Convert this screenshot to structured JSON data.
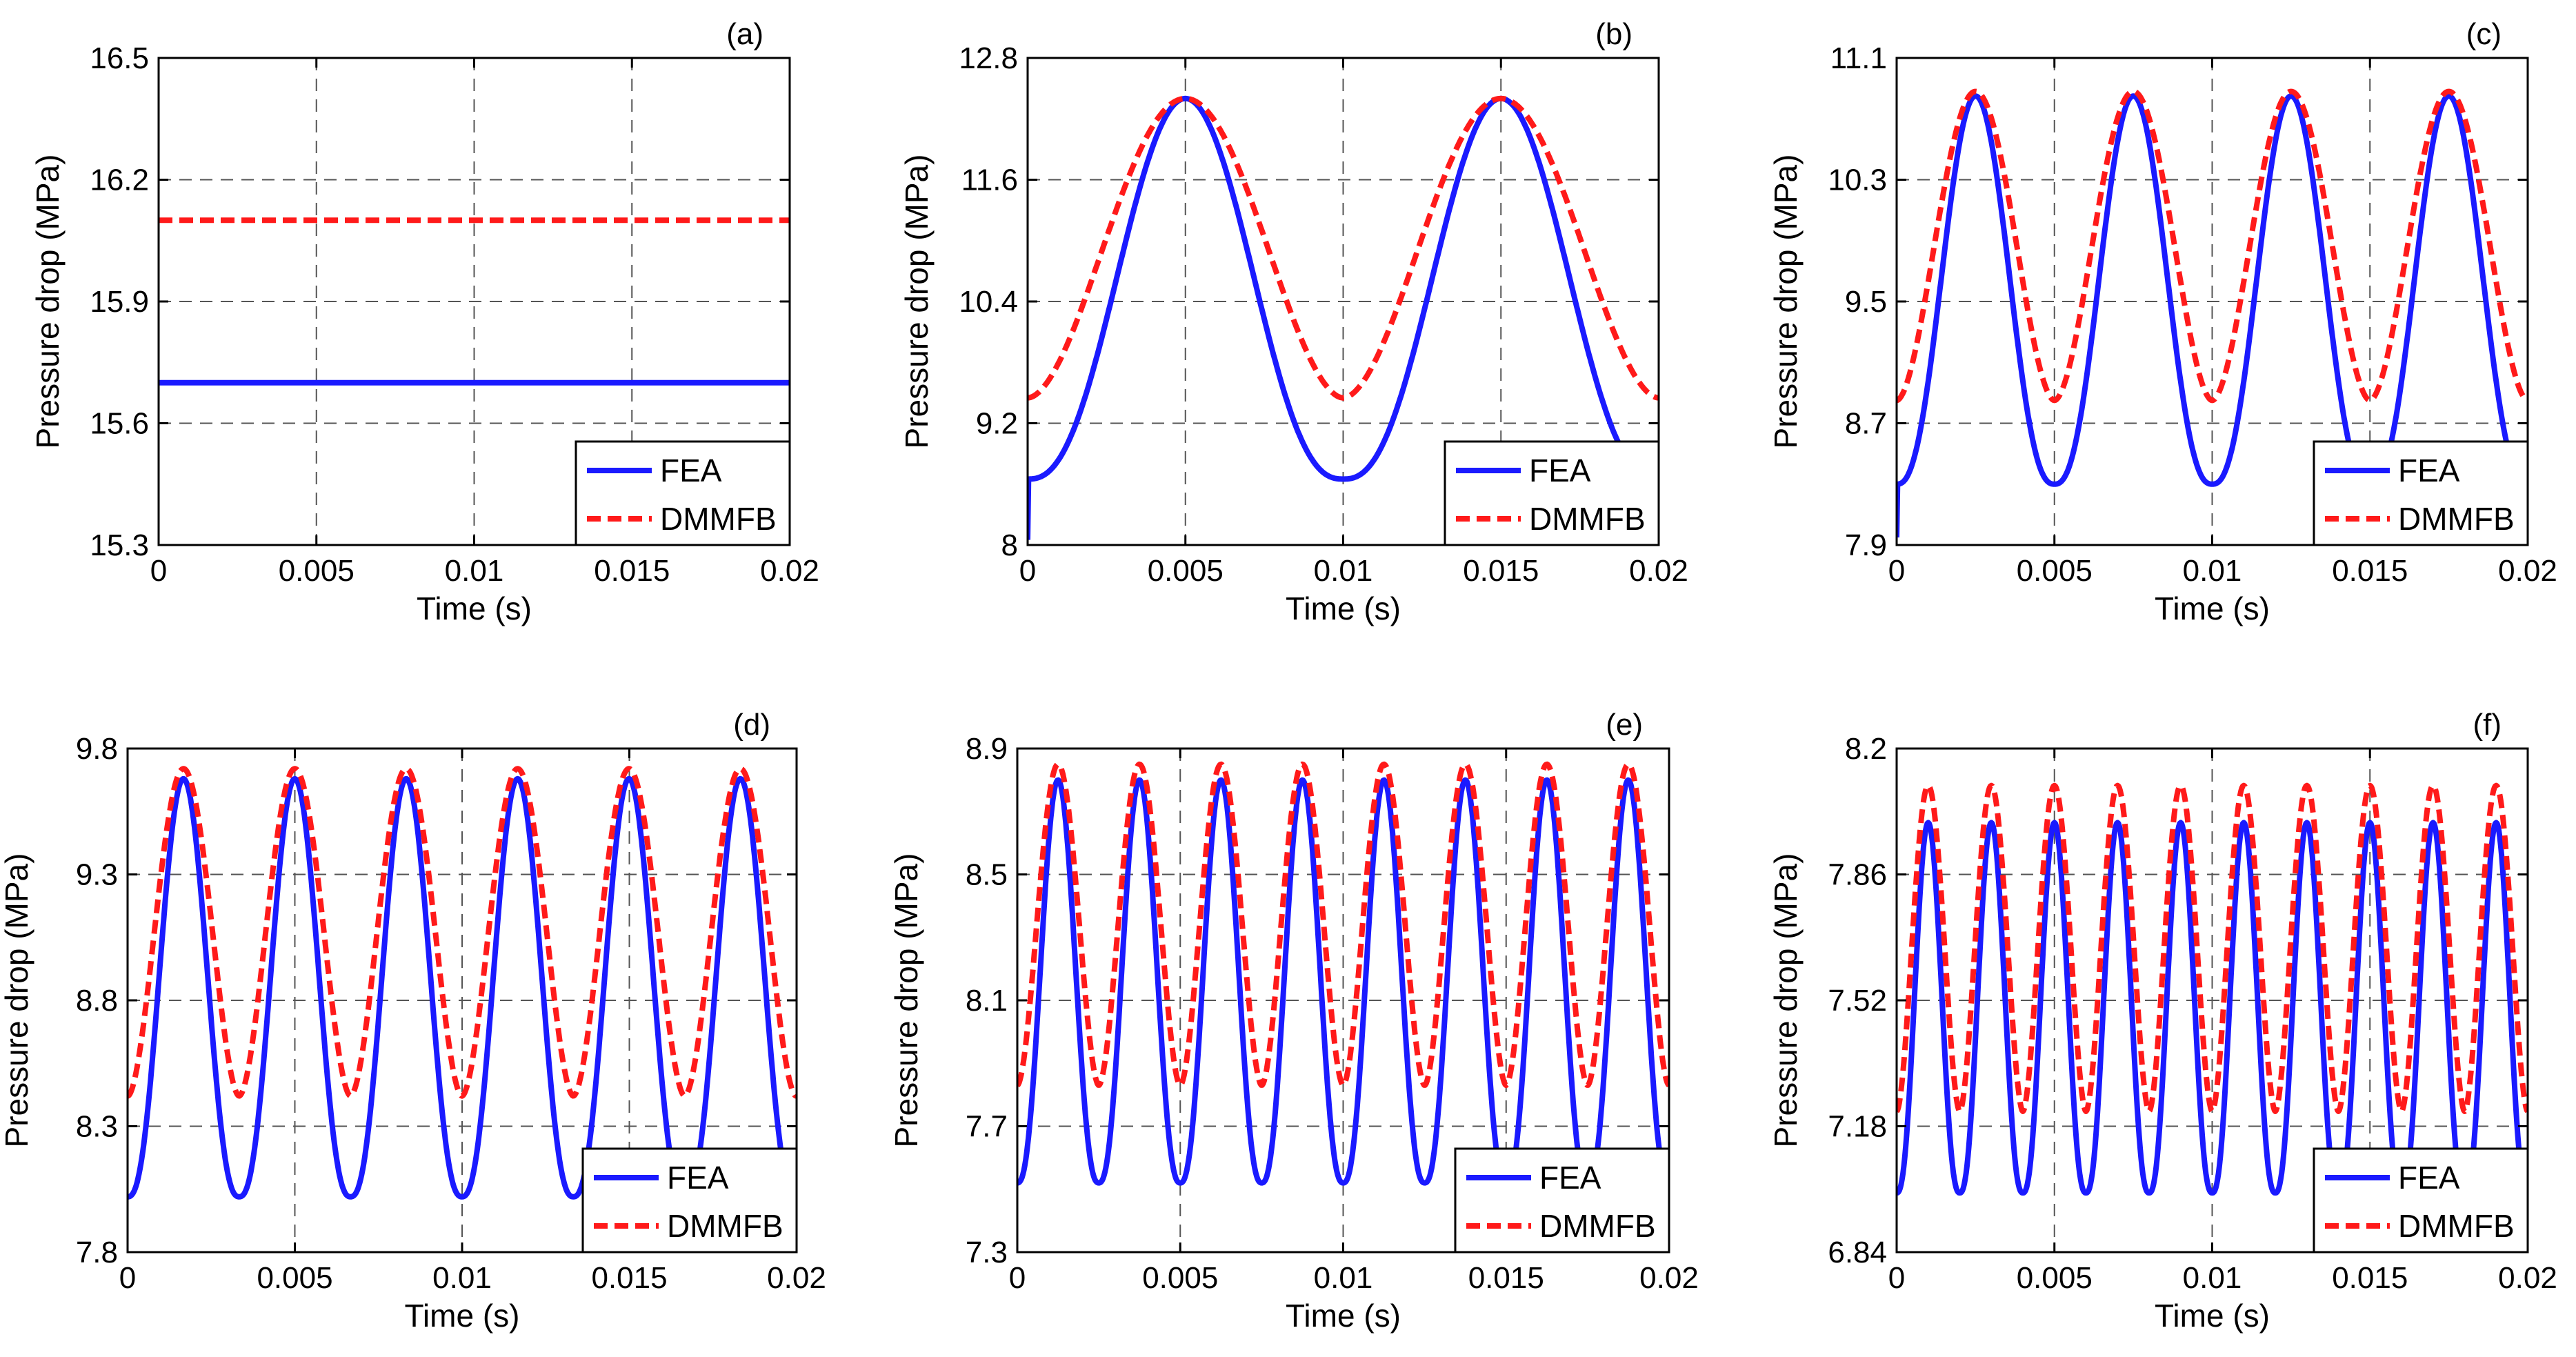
{
  "figure": {
    "ylabel": "Pressure drop (MPa)",
    "xlabel": "Time (s)"
  },
  "colors": {
    "fea": "#1a1aff",
    "dmmfb": "#ff1a1a",
    "grid": "#555555"
  },
  "chart_data": [
    {
      "panel": "(a)",
      "type": "line",
      "xlabel": "Time (s)",
      "ylabel": "Pressure drop (MPa)",
      "xlim": [
        0,
        0.02
      ],
      "ylim": [
        15.3,
        16.5
      ],
      "xticks": [
        "0",
        "0.005",
        "0.01",
        "0.015",
        "0.02"
      ],
      "yticks": [
        "15.3",
        "15.6",
        "15.9",
        "16.2",
        "16.5"
      ],
      "grid": true,
      "legend_position": "bottom-right",
      "series": [
        {
          "name": "FEA",
          "style": "solid",
          "kind": "constant",
          "value": 15.7
        },
        {
          "name": "DMMFB",
          "style": "dashed",
          "kind": "constant",
          "value": 16.1
        }
      ]
    },
    {
      "panel": "(b)",
      "type": "line",
      "xlabel": "Time (s)",
      "ylabel": "Pressure drop (MPa)",
      "xlim": [
        0,
        0.02
      ],
      "ylim": [
        8,
        12.8
      ],
      "xticks": [
        "0",
        "0.005",
        "0.01",
        "0.015",
        "0.02"
      ],
      "yticks": [
        "8",
        "9.2",
        "10.4",
        "11.6",
        "12.8"
      ],
      "grid": true,
      "legend_position": "bottom-right",
      "series": [
        {
          "name": "FEA",
          "style": "solid",
          "kind": "periodic",
          "period": 0.01,
          "peak_time": 0.005,
          "max": 12.4,
          "min": 8.65,
          "shape": 1.25,
          "start_value": 8.05
        },
        {
          "name": "DMMFB",
          "style": "dashed",
          "kind": "periodic",
          "period": 0.01,
          "peak_time": 0.005,
          "max": 12.4,
          "min": 9.45,
          "shape": 0.9
        }
      ]
    },
    {
      "panel": "(c)",
      "type": "line",
      "xlabel": "Time (s)",
      "ylabel": "Pressure drop (MPa)",
      "xlim": [
        0,
        0.02
      ],
      "ylim": [
        7.9,
        11.1
      ],
      "xticks": [
        "0",
        "0.005",
        "0.01",
        "0.015",
        "0.02"
      ],
      "yticks": [
        "7.9",
        "8.7",
        "9.5",
        "10.3",
        "11.1"
      ],
      "grid": true,
      "legend_position": "bottom-right",
      "series": [
        {
          "name": "FEA",
          "style": "solid",
          "kind": "periodic",
          "period": 0.005,
          "peak_time": 0.0025,
          "max": 10.85,
          "min": 8.3,
          "shape": 1.25,
          "start_value": 7.95
        },
        {
          "name": "DMMFB",
          "style": "dashed",
          "kind": "periodic",
          "period": 0.005,
          "peak_time": 0.0025,
          "max": 10.88,
          "min": 8.85,
          "shape": 0.9
        }
      ]
    },
    {
      "panel": "(d)",
      "type": "line",
      "xlabel": "Time (s)",
      "ylabel": "Pressure drop (MPa)",
      "xlim": [
        0,
        0.02
      ],
      "ylim": [
        7.8,
        9.8
      ],
      "xticks": [
        "0",
        "0.005",
        "0.01",
        "0.015",
        "0.02"
      ],
      "yticks": [
        "7.8",
        "8.3",
        "8.8",
        "9.3",
        "9.8"
      ],
      "grid": true,
      "legend_position": "bottom-right",
      "series": [
        {
          "name": "FEA",
          "style": "solid",
          "kind": "periodic",
          "period": 0.00333,
          "peak_time": 0.00167,
          "max": 9.68,
          "min": 8.02,
          "shape": 1.25
        },
        {
          "name": "DMMFB",
          "style": "dashed",
          "kind": "periodic",
          "period": 0.00333,
          "peak_time": 0.00167,
          "max": 9.72,
          "min": 8.42,
          "shape": 0.9
        }
      ]
    },
    {
      "panel": "(e)",
      "type": "line",
      "xlabel": "Time (s)",
      "ylabel": "Pressure drop (MPa)",
      "xlim": [
        0,
        0.02
      ],
      "ylim": [
        7.3,
        8.9
      ],
      "xticks": [
        "0",
        "0.005",
        "0.01",
        "0.015",
        "0.02"
      ],
      "yticks": [
        "7.3",
        "7.7",
        "8.1",
        "8.5",
        "8.9"
      ],
      "grid": true,
      "legend_position": "bottom-right",
      "series": [
        {
          "name": "FEA",
          "style": "solid",
          "kind": "periodic",
          "period": 0.0025,
          "peak_time": 0.00125,
          "max": 8.8,
          "min": 7.52,
          "shape": 1.25
        },
        {
          "name": "DMMFB",
          "style": "dashed",
          "kind": "periodic",
          "period": 0.0025,
          "peak_time": 0.00125,
          "max": 8.85,
          "min": 7.83,
          "shape": 0.9
        }
      ]
    },
    {
      "panel": "(f)",
      "type": "line",
      "xlabel": "Time (s)",
      "ylabel": "Pressure drop (MPa)",
      "xlim": [
        0,
        0.02
      ],
      "ylim": [
        6.84,
        8.2
      ],
      "xticks": [
        "0",
        "0.005",
        "0.01",
        "0.015",
        "0.02"
      ],
      "yticks": [
        "6.84",
        "7.18",
        "7.52",
        "7.86",
        "8.2"
      ],
      "grid": true,
      "legend_position": "bottom-right",
      "series": [
        {
          "name": "FEA",
          "style": "solid",
          "kind": "periodic",
          "period": 0.002,
          "peak_time": 0.001,
          "max": 8.0,
          "min": 7.0,
          "shape": 1.25
        },
        {
          "name": "DMMFB",
          "style": "dashed",
          "kind": "periodic",
          "period": 0.002,
          "peak_time": 0.001,
          "max": 8.1,
          "min": 7.22,
          "shape": 0.9
        }
      ]
    }
  ]
}
